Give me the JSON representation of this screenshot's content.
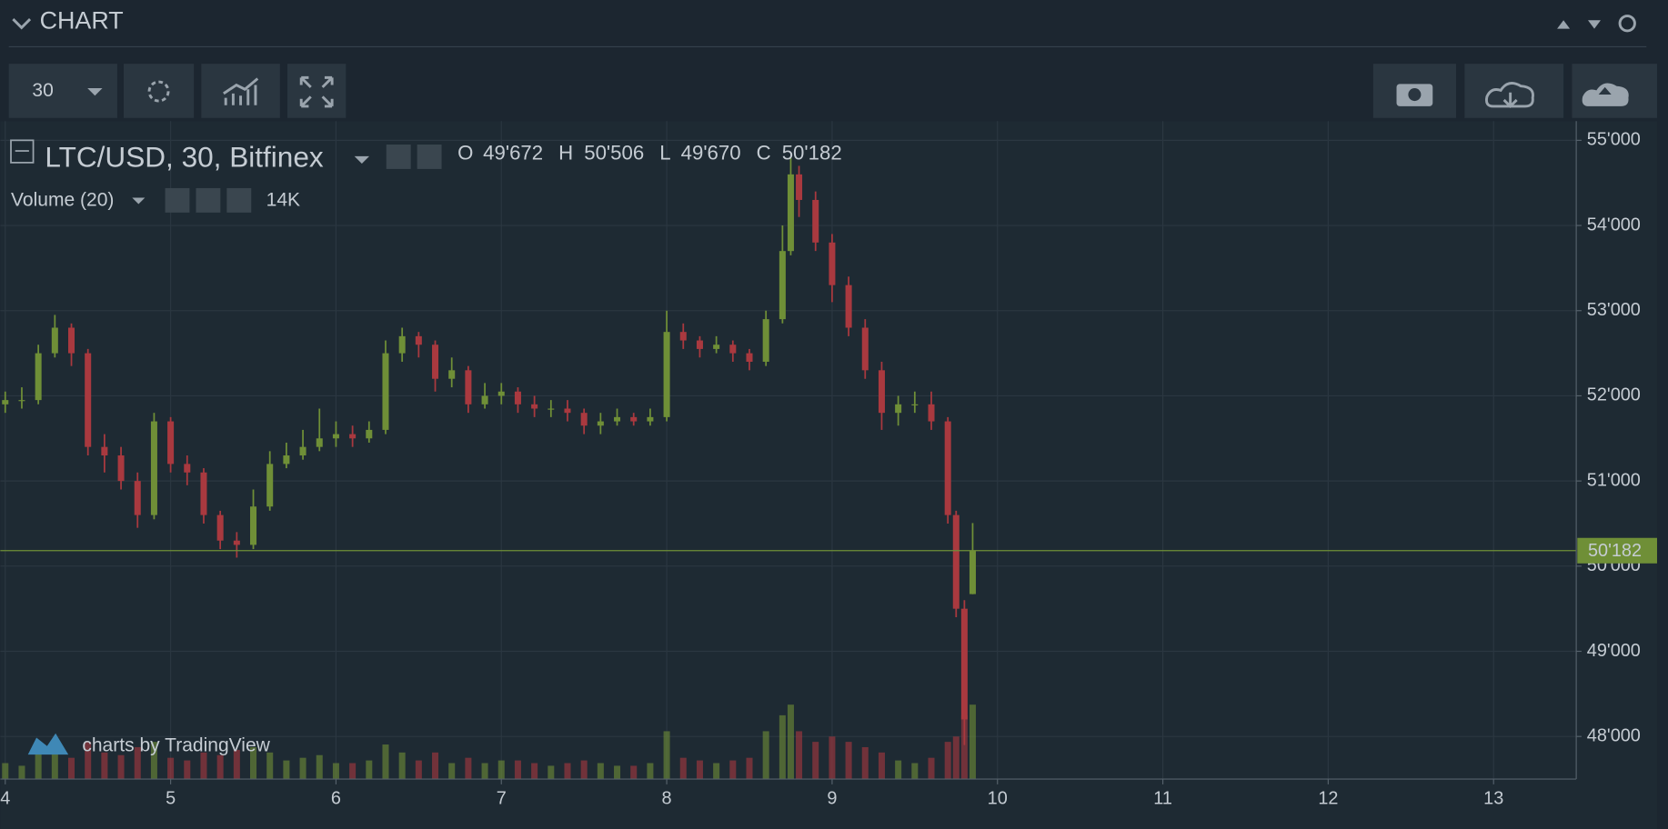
{
  "header": {
    "title": "CHART"
  },
  "toolbar": {
    "interval": "30"
  },
  "legend": {
    "symbol": "LTC/USD, 30, Bitfinex",
    "o_label": "O",
    "o": "49'672",
    "h_label": "H",
    "h": "50'506",
    "l_label": "L",
    "l": "49'670",
    "c_label": "C",
    "c": "50'182",
    "volume_name": "Volume (20)",
    "volume": "14K"
  },
  "watermark": "charts by TradingView",
  "chart_data": {
    "type": "candlestick",
    "x": [
      4.0,
      4.1,
      4.2,
      4.3,
      4.4,
      4.5,
      4.6,
      4.7,
      4.8,
      4.9,
      5.0,
      5.1,
      5.2,
      5.3,
      5.4,
      5.5,
      5.6,
      5.7,
      5.8,
      5.9,
      6.0,
      6.1,
      6.2,
      6.3,
      6.4,
      6.5,
      6.6,
      6.7,
      6.8,
      6.9,
      7.0,
      7.1,
      7.2,
      7.3,
      7.4,
      7.5,
      7.6,
      7.7,
      7.8,
      7.9,
      8.0,
      8.1,
      8.2,
      8.3,
      8.4,
      8.5,
      8.6,
      8.7,
      8.75,
      8.8,
      8.9,
      9.0,
      9.1,
      9.2,
      9.3,
      9.4,
      9.5,
      9.6,
      9.7,
      9.75,
      9.8,
      9.85
    ],
    "open": [
      51900,
      51950,
      51950,
      52500,
      52800,
      52500,
      51400,
      51300,
      51000,
      50600,
      51700,
      51200,
      51100,
      50600,
      50300,
      50250,
      50700,
      51200,
      51300,
      51400,
      51500,
      51550,
      51500,
      51600,
      52500,
      52700,
      52600,
      52200,
      52300,
      51900,
      52000,
      52050,
      51900,
      51850,
      51850,
      51800,
      51650,
      51700,
      51750,
      51700,
      51750,
      52750,
      52650,
      52550,
      52600,
      52500,
      52400,
      52900,
      53700,
      54600,
      54300,
      53800,
      53300,
      52800,
      52300,
      51800,
      51900,
      51900,
      51700,
      50600,
      49500,
      49672
    ],
    "high": [
      52050,
      52100,
      52600,
      52950,
      52850,
      52550,
      51550,
      51400,
      51100,
      51800,
      51750,
      51300,
      51150,
      50650,
      50400,
      50900,
      51350,
      51450,
      51600,
      51850,
      51700,
      51650,
      51700,
      52650,
      52800,
      52750,
      52650,
      52450,
      52350,
      52150,
      52150,
      52100,
      52000,
      51950,
      51950,
      51850,
      51800,
      51850,
      51800,
      51850,
      53000,
      52850,
      52700,
      52700,
      52650,
      52550,
      53000,
      54000,
      54800,
      54700,
      54400,
      53900,
      53400,
      52900,
      52400,
      52000,
      52050,
      52050,
      51750,
      50650,
      49600,
      50506
    ],
    "low": [
      51800,
      51850,
      51900,
      52450,
      52350,
      51300,
      51100,
      50900,
      50450,
      50550,
      51100,
      50950,
      50500,
      50200,
      50100,
      50200,
      50650,
      51150,
      51250,
      51350,
      51400,
      51400,
      51450,
      51550,
      52400,
      52450,
      52050,
      52100,
      51800,
      51850,
      51900,
      51800,
      51750,
      51750,
      51700,
      51550,
      51550,
      51650,
      51650,
      51650,
      51700,
      52550,
      52450,
      52500,
      52400,
      52300,
      52350,
      52850,
      53650,
      54100,
      53700,
      53100,
      52700,
      52200,
      51600,
      51650,
      51800,
      51600,
      50500,
      49400,
      47900,
      49670
    ],
    "close": [
      51950,
      51950,
      52500,
      52800,
      52500,
      51400,
      51300,
      51000,
      50600,
      51700,
      51200,
      51100,
      50600,
      50300,
      50250,
      50700,
      51200,
      51300,
      51400,
      51500,
      51550,
      51500,
      51600,
      52500,
      52700,
      52600,
      52200,
      52300,
      51900,
      52000,
      52050,
      51900,
      51850,
      51850,
      51800,
      51650,
      51700,
      51750,
      51700,
      51750,
      52750,
      52650,
      52550,
      52600,
      52500,
      52400,
      52900,
      53700,
      54600,
      54300,
      53800,
      53300,
      52800,
      52300,
      51800,
      51900,
      51900,
      51700,
      50600,
      49500,
      48200,
      50182
    ],
    "volume": [
      3000,
      2500,
      5000,
      6000,
      4000,
      7000,
      5000,
      4500,
      6000,
      7000,
      4000,
      3500,
      5000,
      4500,
      5500,
      6000,
      5000,
      3500,
      4000,
      4500,
      3000,
      3000,
      3500,
      6500,
      5000,
      3500,
      5000,
      3000,
      4000,
      3000,
      3500,
      3500,
      3000,
      2500,
      3000,
      3500,
      3000,
      2500,
      2500,
      3000,
      9000,
      4000,
      3500,
      3000,
      3500,
      4000,
      9000,
      12000,
      14000,
      9000,
      7000,
      8000,
      7000,
      6000,
      5000,
      3500,
      3000,
      4000,
      7000,
      8000,
      12000,
      14000
    ],
    "up_color": "#6f8f37",
    "down_color": "#a9393f",
    "xlim": [
      3.97,
      13.5
    ],
    "xticks": [
      4,
      5,
      6,
      7,
      8,
      9,
      10,
      11,
      12,
      13
    ],
    "ylim": [
      47500,
      55225
    ],
    "yticks": [
      {
        "value": 48000,
        "label": "48'000"
      },
      {
        "value": 49000,
        "label": "49'000"
      },
      {
        "value": 50000,
        "label": "50'000"
      },
      {
        "value": 51000,
        "label": "51'000"
      },
      {
        "value": 52000,
        "label": "52'000"
      },
      {
        "value": 53000,
        "label": "53'000"
      },
      {
        "value": 54000,
        "label": "54'000"
      },
      {
        "value": 55000,
        "label": "55'000"
      }
    ],
    "vlim": [
      0,
      50000
    ],
    "last_price": {
      "value": 50182,
      "label": "50'182"
    },
    "grid": true
  }
}
